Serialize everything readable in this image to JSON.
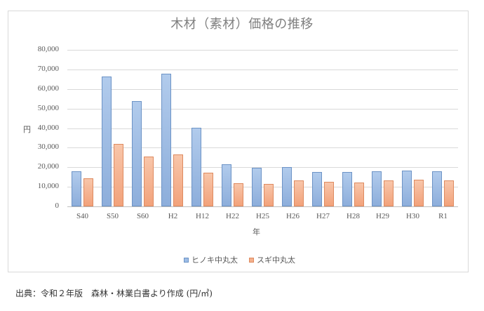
{
  "chart_data": {
    "type": "bar",
    "title": "木材（素材）価格の推移",
    "xlabel": "年",
    "ylabel": "円",
    "ylim": [
      0,
      80000
    ],
    "yticks": [
      "0",
      "10,000",
      "20,000",
      "30,000",
      "40,000",
      "50,000",
      "60,000",
      "70,000",
      "80,000"
    ],
    "grid": true,
    "legend_position": "bottom",
    "categories": [
      "S40",
      "S50",
      "S60",
      "H2",
      "H12",
      "H22",
      "H25",
      "H26",
      "H27",
      "H28",
      "H29",
      "H30",
      "R1"
    ],
    "series": [
      {
        "name": "ヒノキ中丸太",
        "color": "#9dbde6",
        "values": [
          17900,
          66200,
          53800,
          67800,
          40300,
          21500,
          19800,
          20000,
          17600,
          17600,
          18100,
          18400,
          18100
        ]
      },
      {
        "name": "スギ中丸太",
        "color": "#f4b08c",
        "values": [
          14300,
          31800,
          25400,
          26500,
          17300,
          11800,
          11400,
          13400,
          12600,
          12200,
          13200,
          13800,
          13400
        ]
      }
    ]
  },
  "legend": {
    "hinoki_label": "ヒノキ中丸太",
    "sugi_label": "スギ中丸太"
  },
  "source_note": "出典：令和２年版　森林・林業白書より作成 (円/㎥)"
}
